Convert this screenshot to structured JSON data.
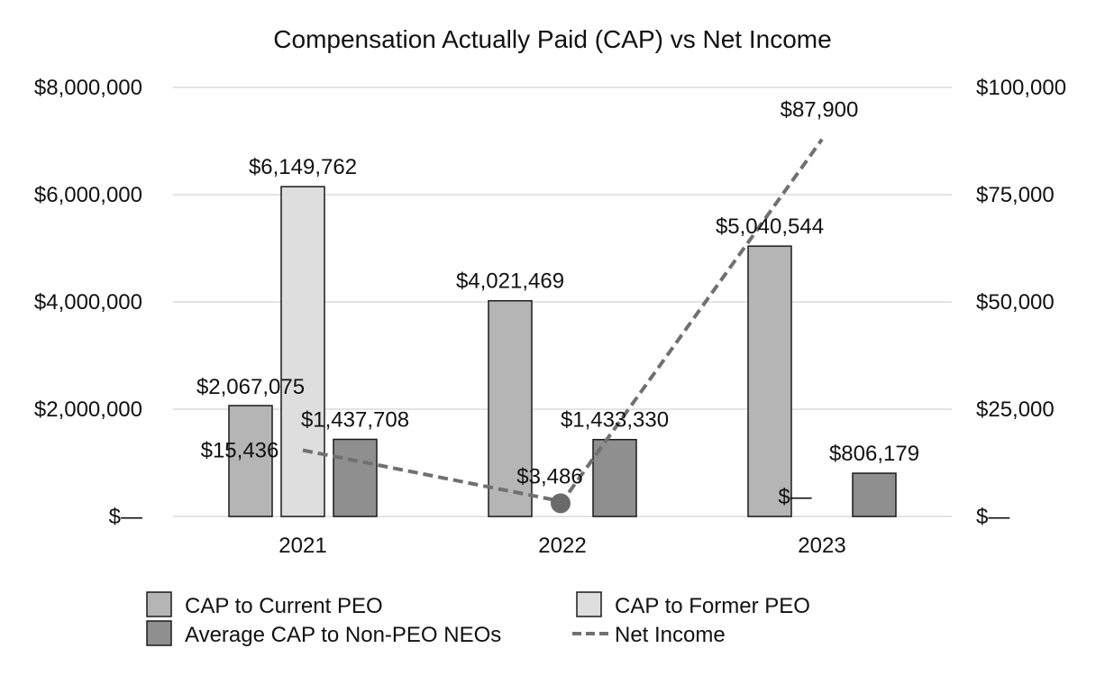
{
  "chart_data": {
    "type": "bar",
    "title": "Compensation Actually Paid (CAP) vs Net Income",
    "categories": [
      "2021",
      "2022",
      "2023"
    ],
    "y_left": {
      "ylim": [
        0,
        8000000
      ],
      "ticks": [
        0,
        2000000,
        4000000,
        6000000,
        8000000
      ],
      "tick_labels": [
        "$—",
        "$2,000,000",
        "$4,000,000",
        "$6,000,000",
        "$8,000,000"
      ]
    },
    "y_right": {
      "ylim": [
        0,
        100000
      ],
      "ticks": [
        0,
        25000,
        50000,
        75000,
        100000
      ],
      "tick_labels": [
        "$—",
        "$25,000",
        "$50,000",
        "$75,000",
        "$100,000"
      ]
    },
    "grid": true,
    "series": [
      {
        "name": "CAP to Current PEO",
        "kind": "bar",
        "axis": "left",
        "color": "#b5b5b5",
        "values": [
          2067075,
          4021469,
          5040544
        ],
        "labels": [
          "$2,067,075",
          "$4,021,469",
          "$5,040,544"
        ]
      },
      {
        "name": "CAP to Former PEO",
        "kind": "bar",
        "axis": "left",
        "color": "#dedede",
        "values": [
          6149762,
          0,
          0
        ],
        "labels": [
          "$6,149,762",
          "$—",
          "$—"
        ]
      },
      {
        "name": "Average CAP to Non-PEO NEOs",
        "kind": "bar",
        "axis": "left",
        "color": "#8f8f8f",
        "values": [
          1437708,
          1433330,
          806179
        ],
        "labels": [
          "$1,437,708",
          "$1,433,330",
          "$806,179"
        ]
      },
      {
        "name": "Net Income",
        "kind": "line",
        "axis": "right",
        "color": "#707070",
        "values": [
          15436,
          3486,
          87900
        ],
        "labels": [
          "$15,436",
          "$3,486",
          "$87,900"
        ]
      }
    ],
    "legend_position": "bottom"
  }
}
